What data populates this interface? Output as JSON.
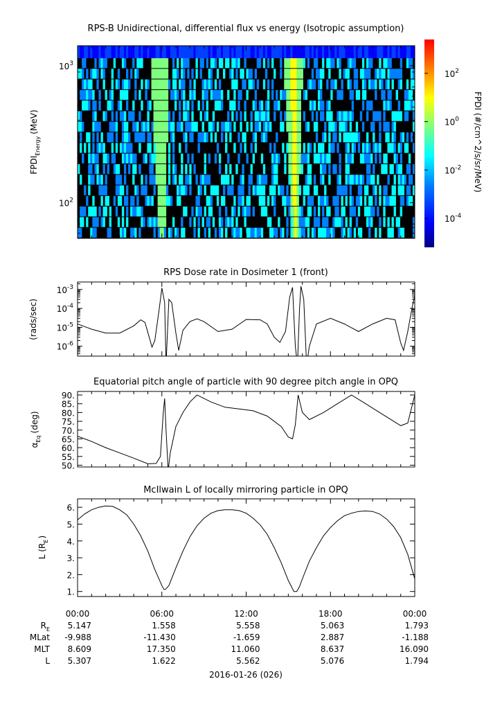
{
  "chart_data": [
    {
      "type": "heatmap",
      "title": "RPS-B  Unidirectional, differential flux vs energy (Isotropic assumption)",
      "ylabel": "FPDI",
      "ylabel_sub": "Energy",
      "ylabel_unit": "(MeV)",
      "yscale": "log",
      "ylim": [
        55,
        1400
      ],
      "yticks": [
        {
          "value": 100,
          "base": "10",
          "exp": "2"
        },
        {
          "value": 1000,
          "base": "10",
          "exp": "3"
        }
      ],
      "xlim_hours": [
        0,
        24
      ],
      "colorbar": {
        "label": "FPDI (#/cm^2/s/sr/MeV)",
        "scale": "log",
        "range_log10": [
          -5.2,
          3.4
        ],
        "ticks": [
          {
            "value": 0.0001,
            "base": "10",
            "exp": "-4"
          },
          {
            "value": 0.01,
            "base": "10",
            "exp": "-2"
          },
          {
            "value": 1,
            "base": "10",
            "exp": "0"
          },
          {
            "value": 100,
            "base": "10",
            "exp": "2"
          }
        ]
      },
      "features": [
        {
          "center_hour": 6.0,
          "peak_flux": 1.0
        },
        {
          "center_hour": 15.5,
          "peak_flux": 3.0
        }
      ],
      "background_flux": 0.01
    },
    {
      "type": "line",
      "title": "RPS  Dose rate in Dosimeter 1 (front)",
      "ylabel": "(rads/sec)",
      "yscale": "log",
      "ylim": [
        3e-07,
        0.0025
      ],
      "yticks": [
        {
          "value": 1e-06,
          "base": "10",
          "exp": "-6"
        },
        {
          "value": 1e-05,
          "base": "10",
          "exp": "-5"
        },
        {
          "value": 0.0001,
          "base": "10",
          "exp": "-4"
        },
        {
          "value": 0.001,
          "base": "10",
          "exp": "-3"
        }
      ],
      "x_hours": [
        0,
        1,
        2,
        3,
        4,
        4.5,
        4.8,
        5.1,
        5.3,
        5.5,
        5.8,
        6.0,
        6.2,
        6.3,
        6.5,
        6.7,
        7.0,
        7.2,
        7.5,
        8.0,
        8.5,
        9,
        10,
        11,
        12,
        13,
        13.5,
        14,
        14.4,
        14.8,
        15.1,
        15.3,
        15.5,
        15.65,
        15.8,
        15.9,
        16.1,
        16.3,
        16.5,
        17,
        18,
        19,
        20,
        21,
        22,
        22.6,
        23,
        23.2,
        23.5,
        23.8,
        24
      ],
      "values": [
        1.5e-05,
        8e-06,
        5e-06,
        5e-06,
        1.2e-05,
        2.5e-05,
        1.8e-05,
        3e-06,
        9e-07,
        2e-06,
        8e-05,
        0.0012,
        0.0002,
        1e-07,
        0.0003,
        0.0002,
        5e-06,
        6e-07,
        7e-06,
        2e-05,
        2.8e-05,
        2e-05,
        6e-06,
        8e-06,
        2.6e-05,
        2.5e-05,
        1.5e-05,
        3e-06,
        1.6e-06,
        6e-06,
        0.0004,
        0.0013,
        1e-06,
        1e-07,
        0.0001,
        0.0015,
        0.0003,
        1e-07,
        1e-06,
        1.5e-05,
        3e-05,
        1.5e-05,
        6e-06,
        1.5e-05,
        3e-05,
        2.5e-05,
        1.5e-06,
        6e-07,
        6e-06,
        0.0001,
        0.0005
      ]
    },
    {
      "type": "line",
      "title": "Equatorial pitch angle of particle with 90 degree pitch angle in OPQ",
      "ylabel": "α",
      "ylabel_sub": "Eq",
      "ylabel_unit": "(deg)",
      "ylim": [
        49,
        92
      ],
      "yticks": [
        "50.",
        "55.",
        "60.",
        "65.",
        "70.",
        "75.",
        "80.",
        "85.",
        "90."
      ],
      "ytick_values": [
        50,
        55,
        60,
        65,
        70,
        75,
        80,
        85,
        90
      ],
      "x_hours": [
        0,
        1,
        2,
        3,
        4,
        5,
        5.6,
        5.9,
        6.1,
        6.2,
        6.3,
        6.45,
        6.6,
        7.0,
        7.5,
        8.0,
        8.5,
        9.5,
        10.5,
        11.5,
        12.5,
        13.5,
        14.5,
        15.0,
        15.3,
        15.5,
        15.7,
        16.0,
        16.5,
        17.5,
        18.5,
        19.5,
        20.5,
        21.5,
        22.5,
        23.0,
        23.5,
        24
      ],
      "values": [
        66.5,
        63.5,
        60,
        57,
        54,
        50.8,
        51,
        55,
        80,
        88,
        70,
        47,
        57,
        72,
        80,
        86,
        90,
        86,
        83,
        82,
        81,
        78,
        72,
        66,
        65,
        73,
        90,
        80,
        76,
        80,
        85,
        90,
        85,
        80,
        75,
        72.5,
        74,
        90
      ]
    },
    {
      "type": "line",
      "title": "McIlwain L of locally mirroring particle in OPQ",
      "ylabel": "L (R",
      "ylabel_sub": "E",
      "ylabel_unit": ")",
      "ylim": [
        0.7,
        6.5
      ],
      "yticks": [
        "1.",
        "2.",
        "3.",
        "4.",
        "5.",
        "6."
      ],
      "ytick_values": [
        1,
        2,
        3,
        4,
        5,
        6
      ],
      "x_hours": [
        0,
        0.5,
        1,
        1.5,
        2,
        2.5,
        3,
        3.5,
        4,
        4.5,
        5,
        5.5,
        6,
        6.15,
        6.25,
        6.5,
        7,
        7.5,
        8,
        8.5,
        9,
        9.5,
        10,
        10.5,
        11,
        11.5,
        12,
        12.5,
        13,
        13.5,
        14,
        14.5,
        15,
        15.4,
        15.6,
        15.8,
        16,
        16.5,
        17,
        17.5,
        18,
        18.5,
        19,
        19.5,
        20,
        20.5,
        21,
        21.5,
        22,
        22.5,
        23,
        23.5,
        24
      ],
      "values": [
        5.25,
        5.6,
        5.85,
        6.0,
        6.08,
        6.05,
        5.85,
        5.55,
        5.0,
        4.3,
        3.4,
        2.3,
        1.35,
        1.12,
        1.12,
        1.35,
        2.4,
        3.4,
        4.25,
        4.9,
        5.35,
        5.65,
        5.8,
        5.85,
        5.85,
        5.8,
        5.65,
        5.35,
        4.95,
        4.4,
        3.6,
        2.7,
        1.65,
        1.0,
        1.0,
        1.3,
        1.75,
        2.8,
        3.6,
        4.3,
        4.8,
        5.2,
        5.5,
        5.65,
        5.75,
        5.78,
        5.75,
        5.6,
        5.3,
        4.85,
        4.2,
        3.2,
        1.75
      ]
    }
  ],
  "time_axis": {
    "hours": [
      0,
      6,
      12,
      18,
      24
    ],
    "tick_labels": [
      "00:00",
      "06:00",
      "12:00",
      "18:00",
      "00:00"
    ],
    "minor_step_hours": 1,
    "date_label": "2016-01-26 (026)"
  },
  "ephemeris": {
    "rows": [
      {
        "label": "R",
        "label_sub": "E",
        "values": [
          "5.147",
          "1.558",
          "5.558",
          "5.063",
          "1.793"
        ]
      },
      {
        "label": "MLat",
        "label_sub": "",
        "values": [
          "-9.988",
          "-11.430",
          "-1.659",
          "2.887",
          "-1.188"
        ]
      },
      {
        "label": "MLT",
        "label_sub": "",
        "values": [
          "8.609",
          "17.350",
          "11.060",
          "8.637",
          "16.090"
        ]
      },
      {
        "label": "L",
        "label_sub": "",
        "values": [
          "5.307",
          "1.622",
          "5.562",
          "5.076",
          "1.794"
        ]
      }
    ]
  },
  "colors": {
    "line": "#000000",
    "frame": "#000000",
    "colormap": [
      "#00007f",
      "#0000ff",
      "#007fff",
      "#00ffff",
      "#7fff7f",
      "#ffff00",
      "#ff7f00",
      "#ff0000"
    ]
  }
}
